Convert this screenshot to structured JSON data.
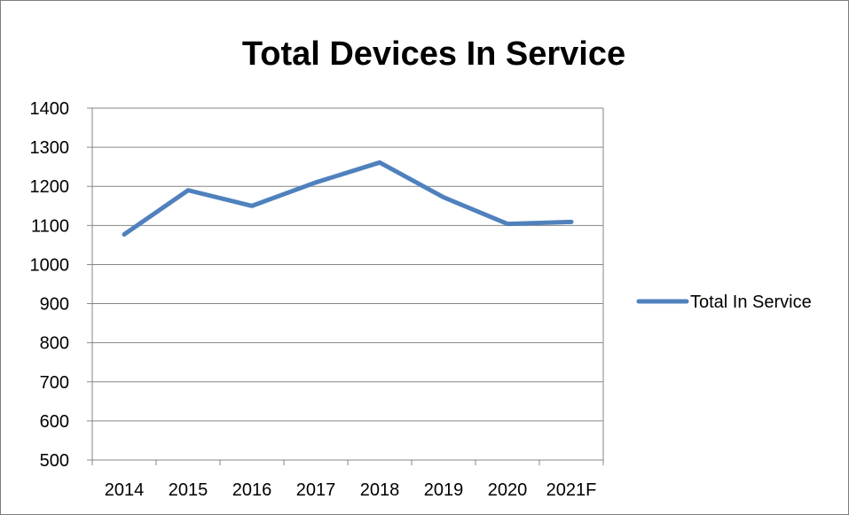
{
  "chart_data": {
    "type": "line",
    "title": "Total Devices In Service",
    "xlabel": "",
    "ylabel": "",
    "categories": [
      "2014",
      "2015",
      "2016",
      "2017",
      "2018",
      "2019",
      "2020",
      "2021F"
    ],
    "series": [
      {
        "name": "Total In Service",
        "values": [
          1077,
          1190,
          1150,
          1210,
          1261,
          1172,
          1104,
          1109
        ],
        "color": "#4f81bd"
      }
    ],
    "ylim": [
      500,
      1400
    ],
    "yticks": [
      "1400",
      "1300",
      "1200",
      "1100",
      "1000",
      "900",
      "800",
      "700",
      "600",
      "500"
    ],
    "grid": "horizontal",
    "legend_position": "right"
  }
}
